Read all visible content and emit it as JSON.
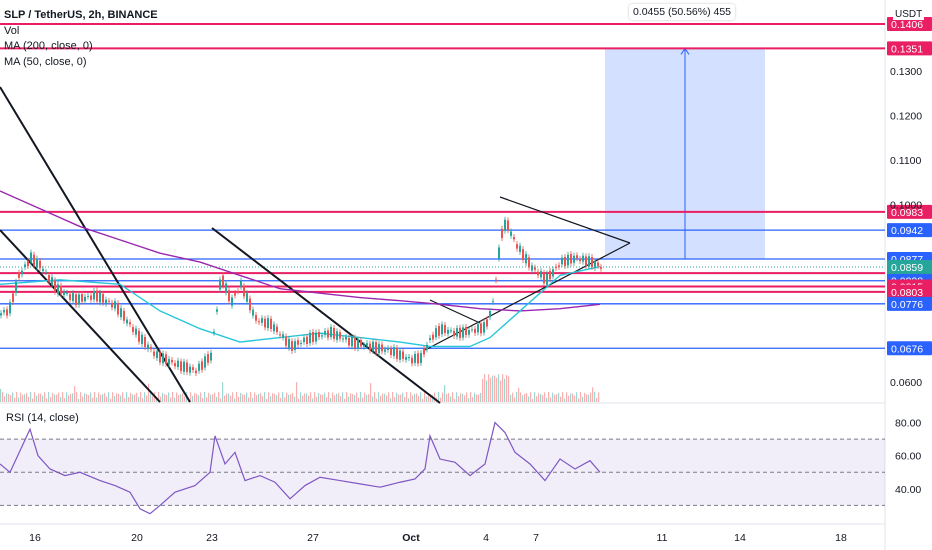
{
  "header": {
    "symbol_line": "SLP / TetherUS, 2h, BINANCE",
    "volume_label": "Vol",
    "ma200_label": "MA (200, close, 0)",
    "ma50_label": "MA (50, close, 0)",
    "rsi_label": "RSI (14, close)",
    "currency": "USDT"
  },
  "projection_label": "0.0455 (50.56%) 455",
  "chart_data": {
    "type": "candlestick",
    "symbol": "SLP / TetherUS",
    "interval": "2h",
    "exchange": "BINANCE",
    "ylim": [
      0.0555,
      0.146
    ],
    "y_ticks": [
      {
        "value": 0.13,
        "label": "0.1300"
      },
      {
        "value": 0.12,
        "label": "0.1200"
      },
      {
        "value": 0.11,
        "label": "0.1100"
      },
      {
        "value": 0.1,
        "label": "0.1000"
      },
      {
        "value": 0.06,
        "label": "0.0600"
      }
    ],
    "x_ticks": [
      "16",
      "20",
      "23",
      "27",
      "Oct",
      "4",
      "7",
      "11",
      "14",
      "18"
    ],
    "horizontal_levels": [
      {
        "value": 0.1406,
        "label": "0.1406",
        "color": "#e91e63"
      },
      {
        "value": 0.1351,
        "label": "0.1351",
        "color": "#e91e63"
      },
      {
        "value": 0.0983,
        "label": "0.0983",
        "color": "#e91e63"
      },
      {
        "value": 0.0942,
        "label": "0.0942",
        "color": "#2962ff"
      },
      {
        "value": 0.0877,
        "label": "0.0877",
        "color": "#2962ff"
      },
      {
        "value": 0.0845,
        "label": "0.0845",
        "color": "#e91e63"
      },
      {
        "value": 0.0828,
        "label": "0.0828",
        "color": "#2962ff"
      },
      {
        "value": 0.0815,
        "label": "0.0815",
        "color": "#e91e63"
      },
      {
        "value": 0.0803,
        "label": "0.0803",
        "color": "#e91e63"
      },
      {
        "value": 0.0776,
        "label": "0.0776",
        "color": "#2962ff"
      },
      {
        "value": 0.0676,
        "label": "0.0676",
        "color": "#2962ff"
      }
    ],
    "last_price": {
      "value": 0.0859,
      "label": "0.0859",
      "color": "#26a69a"
    },
    "price_path": [
      [
        0,
        0.0755
      ],
      [
        8,
        0.076
      ],
      [
        18,
        0.084
      ],
      [
        30,
        0.088
      ],
      [
        40,
        0.086
      ],
      [
        55,
        0.0812
      ],
      [
        75,
        0.0785
      ],
      [
        95,
        0.0795
      ],
      [
        115,
        0.077
      ],
      [
        135,
        0.071
      ],
      [
        155,
        0.066
      ],
      [
        175,
        0.064
      ],
      [
        195,
        0.0625
      ],
      [
        210,
        0.066
      ],
      [
        220,
        0.084
      ],
      [
        230,
        0.078
      ],
      [
        240,
        0.082
      ],
      [
        255,
        0.074
      ],
      [
        270,
        0.073
      ],
      [
        290,
        0.068
      ],
      [
        310,
        0.07
      ],
      [
        330,
        0.0712
      ],
      [
        350,
        0.069
      ],
      [
        370,
        0.068
      ],
      [
        390,
        0.067
      ],
      [
        410,
        0.065
      ],
      [
        420,
        0.0655
      ],
      [
        430,
        0.07
      ],
      [
        440,
        0.072
      ],
      [
        455,
        0.071
      ],
      [
        470,
        0.0715
      ],
      [
        485,
        0.0725
      ],
      [
        492,
        0.078
      ],
      [
        500,
        0.093
      ],
      [
        505,
        0.096
      ],
      [
        515,
        0.091
      ],
      [
        530,
        0.086
      ],
      [
        545,
        0.083
      ],
      [
        560,
        0.087
      ],
      [
        575,
        0.088
      ],
      [
        590,
        0.087
      ],
      [
        600,
        0.0859
      ]
    ],
    "ma50": [
      [
        0,
        0.082
      ],
      [
        60,
        0.083
      ],
      [
        120,
        0.082
      ],
      [
        160,
        0.076
      ],
      [
        200,
        0.072
      ],
      [
        240,
        0.069
      ],
      [
        280,
        0.07
      ],
      [
        320,
        0.071
      ],
      [
        360,
        0.07
      ],
      [
        400,
        0.069
      ],
      [
        430,
        0.068
      ],
      [
        470,
        0.068
      ],
      [
        490,
        0.07
      ],
      [
        520,
        0.076
      ],
      [
        560,
        0.084
      ],
      [
        600,
        0.086
      ]
    ],
    "ma200": [
      [
        0,
        0.103
      ],
      [
        40,
        0.099
      ],
      [
        80,
        0.095
      ],
      [
        120,
        0.092
      ],
      [
        160,
        0.089
      ],
      [
        200,
        0.087
      ],
      [
        240,
        0.084
      ],
      [
        280,
        0.081
      ],
      [
        320,
        0.08
      ],
      [
        360,
        0.079
      ],
      [
        400,
        0.0783
      ],
      [
        440,
        0.0775
      ],
      [
        480,
        0.0765
      ],
      [
        520,
        0.076
      ],
      [
        560,
        0.0765
      ],
      [
        600,
        0.0775
      ]
    ],
    "rsi": {
      "ylim": [
        20,
        90
      ],
      "ticks": [
        {
          "value": 80,
          "label": "80.00"
        },
        {
          "value": 60,
          "label": "60.00"
        },
        {
          "value": 40,
          "label": "40.00"
        }
      ],
      "bands": {
        "upper": 70,
        "middle": 50,
        "lower": 30
      },
      "values": [
        [
          0,
          55
        ],
        [
          10,
          50
        ],
        [
          20,
          63
        ],
        [
          30,
          76
        ],
        [
          38,
          60
        ],
        [
          50,
          52
        ],
        [
          65,
          48
        ],
        [
          80,
          50
        ],
        [
          100,
          45
        ],
        [
          115,
          42
        ],
        [
          130,
          38
        ],
        [
          140,
          28
        ],
        [
          150,
          25
        ],
        [
          160,
          30
        ],
        [
          175,
          38
        ],
        [
          195,
          42
        ],
        [
          210,
          50
        ],
        [
          215,
          72
        ],
        [
          225,
          55
        ],
        [
          235,
          62
        ],
        [
          245,
          45
        ],
        [
          260,
          48
        ],
        [
          275,
          44
        ],
        [
          290,
          34
        ],
        [
          305,
          42
        ],
        [
          320,
          47
        ],
        [
          340,
          45
        ],
        [
          360,
          43
        ],
        [
          380,
          41
        ],
        [
          400,
          44
        ],
        [
          415,
          46
        ],
        [
          425,
          52
        ],
        [
          430,
          72
        ],
        [
          440,
          58
        ],
        [
          455,
          56
        ],
        [
          470,
          48
        ],
        [
          485,
          55
        ],
        [
          495,
          80
        ],
        [
          505,
          74
        ],
        [
          515,
          62
        ],
        [
          530,
          55
        ],
        [
          545,
          45
        ],
        [
          560,
          58
        ],
        [
          575,
          52
        ],
        [
          590,
          57
        ],
        [
          600,
          50
        ]
      ]
    }
  }
}
